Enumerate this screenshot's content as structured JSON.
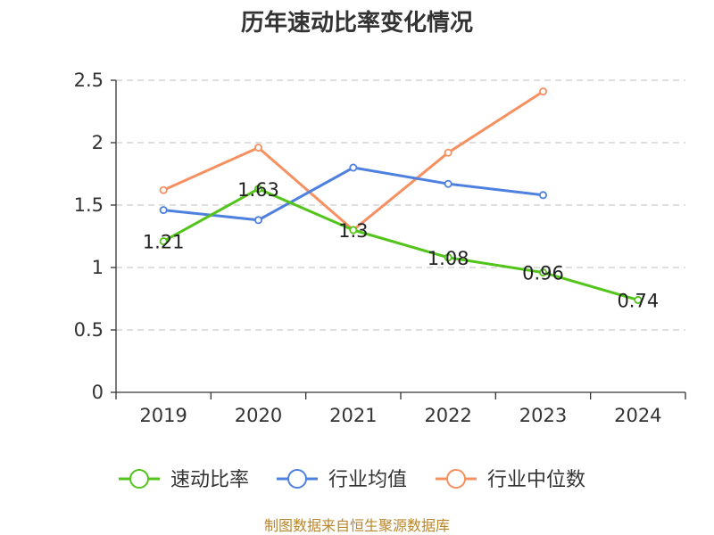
{
  "chart_data": {
    "type": "line",
    "title": "历年速动比率变化情况",
    "categories": [
      "2019",
      "2020",
      "2021",
      "2022",
      "2023",
      "2024"
    ],
    "ylim": [
      0,
      2.5
    ],
    "yticks": [
      "0",
      "0.5",
      "1",
      "1.5",
      "2",
      "2.5"
    ],
    "grid": true,
    "legend_position": "bottom",
    "series": [
      {
        "name": "速动比率",
        "color": "#52c41a",
        "values": [
          1.21,
          1.63,
          1.3,
          1.08,
          0.96,
          0.74
        ],
        "labels": [
          "1.21",
          "1.63",
          "1.3",
          "1.08",
          "0.96",
          "0.74"
        ]
      },
      {
        "name": "行业均值",
        "color": "#4e80df",
        "values": [
          1.46,
          1.38,
          1.8,
          1.67,
          1.58,
          null
        ]
      },
      {
        "name": "行业中位数",
        "color": "#f79061",
        "values": [
          1.62,
          1.96,
          1.3,
          1.92,
          2.41,
          null
        ]
      }
    ],
    "source": "制图数据来自恒生聚源数据库"
  }
}
